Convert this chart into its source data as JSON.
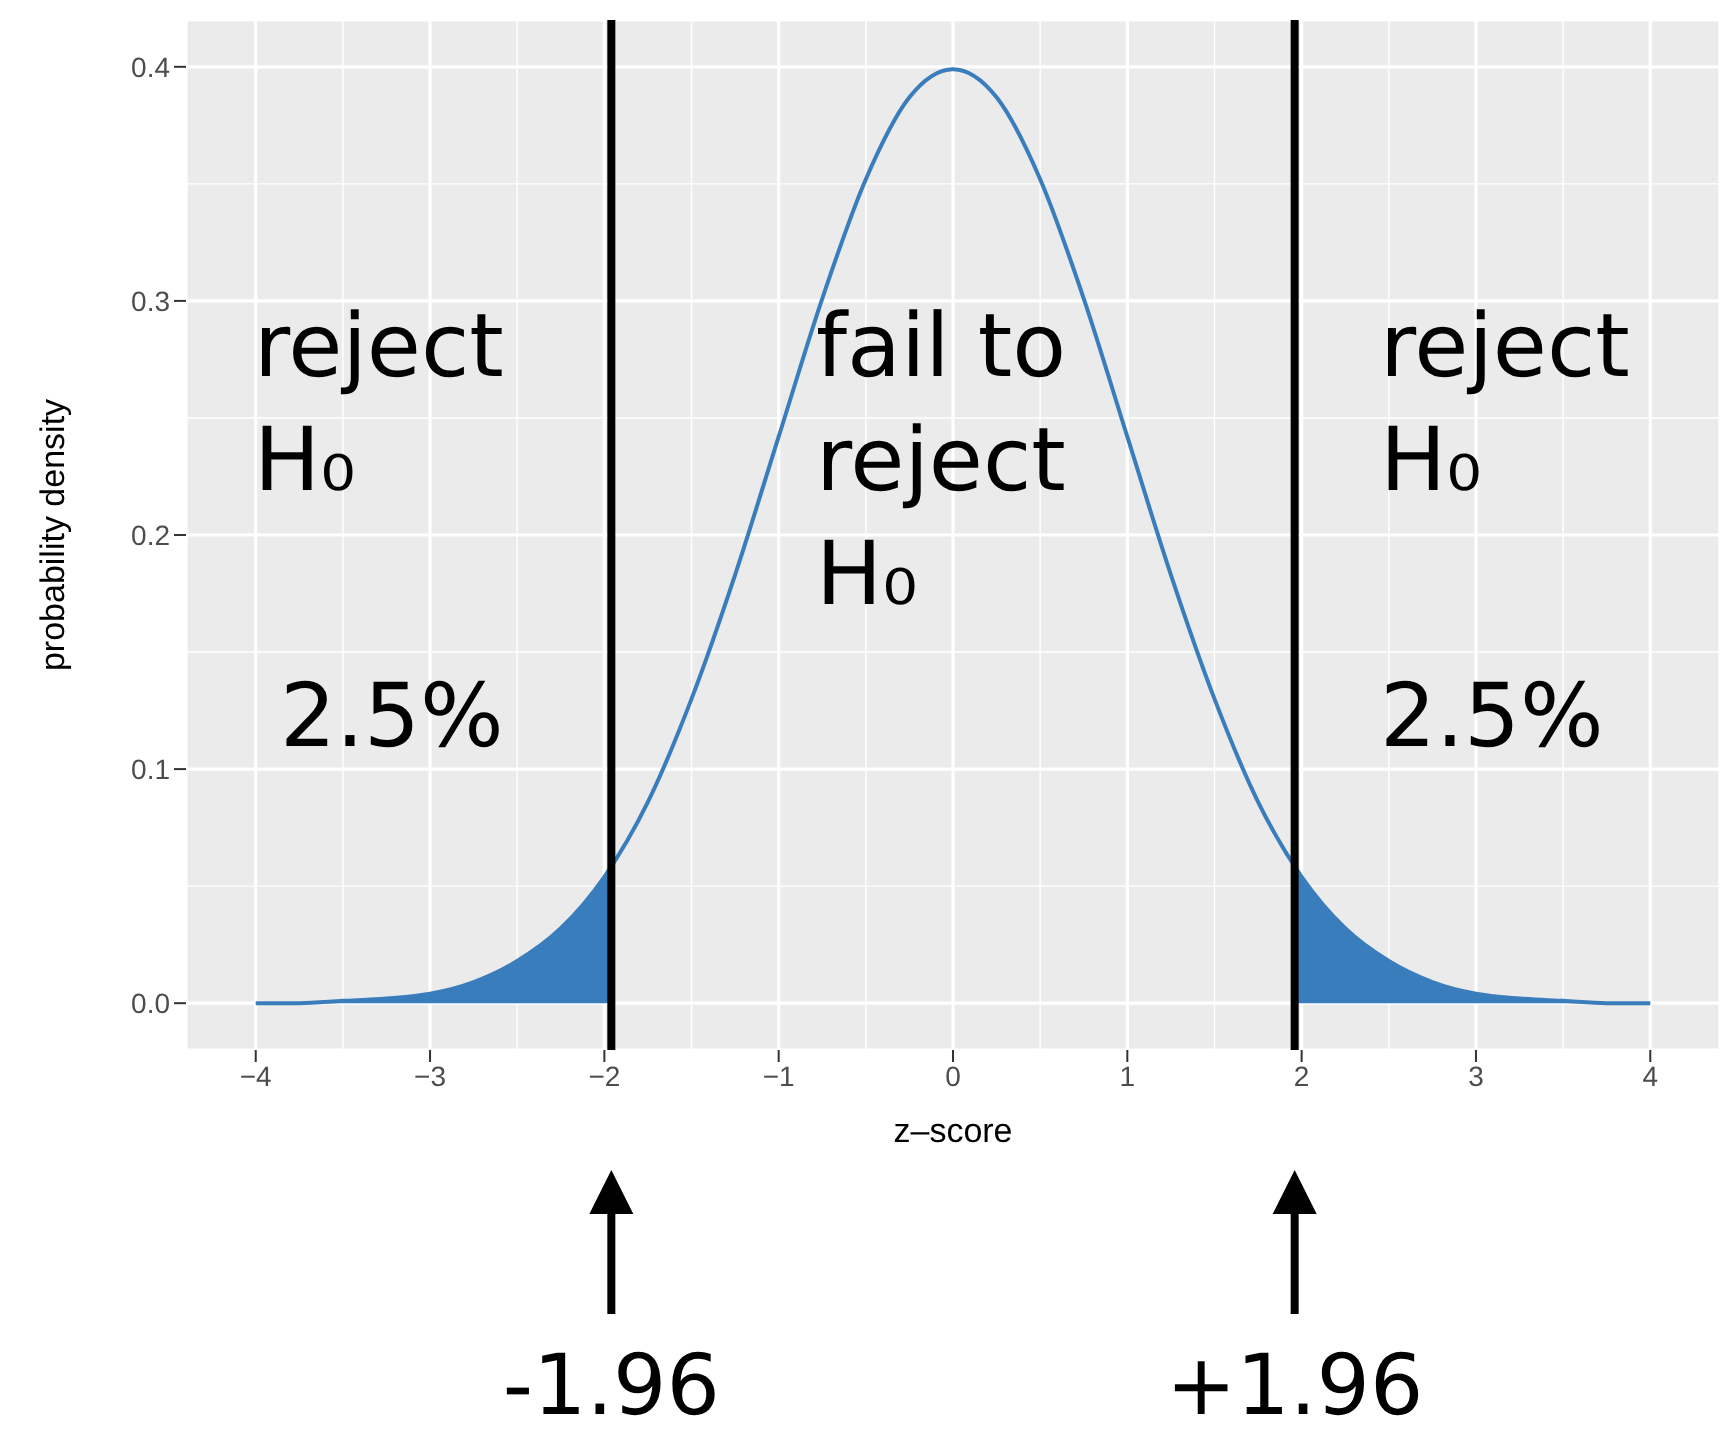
{
  "chart_data": {
    "type": "line",
    "xlabel": "z–score",
    "ylabel": "probability density",
    "series": [
      {
        "type": "area",
        "color": "#3a7dbc",
        "x": [
          -4,
          -3.75,
          -3.5,
          -3.25,
          -3,
          -2.75,
          -2.5,
          -2.25,
          -2,
          -1.96
        ],
        "values": [
          0.0,
          0.0,
          0.001,
          0.002,
          0.004,
          0.009,
          0.018,
          0.032,
          0.054,
          0.058
        ]
      },
      {
        "type": "area",
        "color": "#3a7dbc",
        "x": [
          1.96,
          2,
          2.25,
          2.5,
          2.75,
          3,
          3.25,
          3.5,
          3.75,
          4
        ],
        "values": [
          0.058,
          0.054,
          0.032,
          0.018,
          0.009,
          0.004,
          0.002,
          0.001,
          0.0,
          0.0
        ]
      },
      {
        "color": "#3a7dbc",
        "x": [
          -4,
          -3.75,
          -3.5,
          -3.25,
          -3,
          -2.75,
          -2.5,
          -2.25,
          -2,
          -1.75,
          -1.5,
          -1.25,
          -1,
          -0.75,
          -0.5,
          -0.25,
          0,
          0.25,
          0.5,
          0.75,
          1,
          1.25,
          1.5,
          1.75,
          2,
          2.25,
          2.5,
          2.75,
          3,
          3.25,
          3.5,
          3.75,
          4
        ],
        "values": [
          0.0,
          0.0,
          0.001,
          0.002,
          0.004,
          0.009,
          0.018,
          0.032,
          0.054,
          0.086,
          0.13,
          0.183,
          0.242,
          0.301,
          0.352,
          0.387,
          0.399,
          0.387,
          0.352,
          0.301,
          0.242,
          0.183,
          0.13,
          0.086,
          0.054,
          0.032,
          0.018,
          0.009,
          0.004,
          0.002,
          0.001,
          0.0,
          0.0
        ]
      }
    ],
    "xlim": [
      -4.4,
      4.4
    ],
    "ylim": [
      -0.02,
      0.42
    ],
    "xticks": [
      {
        "value": -4,
        "label": "−4"
      },
      {
        "value": -3,
        "label": "−3"
      },
      {
        "value": -2,
        "label": "−2"
      },
      {
        "value": -1,
        "label": "−1"
      },
      0,
      1,
      2,
      3,
      4
    ],
    "yticks": [
      {
        "value": 0,
        "label": "0.0"
      },
      0.1,
      0.2,
      0.3,
      0.4
    ],
    "grid": true,
    "marker": "none",
    "line_style": "solid",
    "ref_lines": [
      {
        "axis": "x",
        "value": -1.96,
        "color": "#000000"
      },
      {
        "axis": "x",
        "value": 1.96,
        "color": "#000000"
      }
    ],
    "annotations": [
      "reject\nH₀",
      "fail to\nreject\nH₀",
      "reject\nH₀",
      "2.5%",
      "2.5%",
      "-1.96",
      "+1.96"
    ]
  }
}
